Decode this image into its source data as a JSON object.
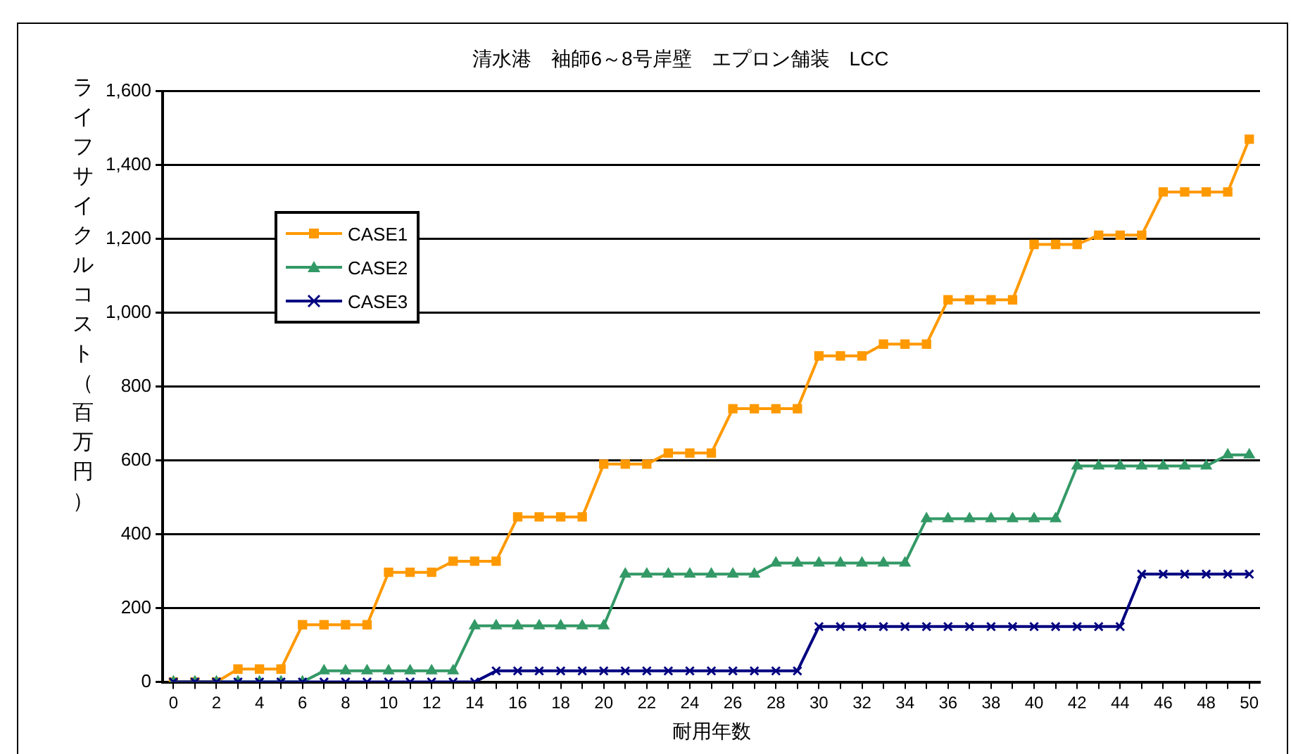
{
  "chart_data": {
    "type": "line",
    "title": "清水港　袖師6～8号岸壁　エプロン舗装　LCC",
    "xlabel": "耐用年数",
    "ylabel": "ライフサイクルコスト（百万円）",
    "x": [
      0,
      1,
      2,
      3,
      4,
      5,
      6,
      7,
      8,
      9,
      10,
      11,
      12,
      13,
      14,
      15,
      16,
      17,
      18,
      19,
      20,
      21,
      22,
      23,
      24,
      25,
      26,
      27,
      28,
      29,
      30,
      31,
      32,
      33,
      34,
      35,
      36,
      37,
      38,
      39,
      40,
      41,
      42,
      43,
      44,
      45,
      46,
      47,
      48,
      49,
      50
    ],
    "series": [
      {
        "name": "CASE1",
        "color": "#ff9900",
        "marker": "square",
        "values": [
          0,
          0,
          0,
          35,
          35,
          35,
          155,
          155,
          155,
          155,
          297,
          297,
          297,
          327,
          327,
          327,
          447,
          447,
          447,
          447,
          590,
          590,
          590,
          620,
          620,
          620,
          740,
          740,
          740,
          740,
          883,
          883,
          883,
          915,
          915,
          915,
          1035,
          1035,
          1035,
          1035,
          1185,
          1185,
          1185,
          1210,
          1210,
          1210,
          1327,
          1327,
          1327,
          1327,
          1470
        ]
      },
      {
        "name": "CASE2",
        "color": "#339966",
        "marker": "triangle",
        "values": [
          0,
          0,
          0,
          0,
          0,
          0,
          0,
          30,
          30,
          30,
          30,
          30,
          30,
          30,
          152,
          152,
          152,
          152,
          152,
          152,
          152,
          292,
          292,
          292,
          292,
          292,
          292,
          292,
          322,
          322,
          322,
          322,
          322,
          322,
          322,
          442,
          442,
          442,
          442,
          442,
          442,
          442,
          585,
          585,
          585,
          585,
          585,
          585,
          585,
          615,
          615
        ]
      },
      {
        "name": "CASE3",
        "color": "#000080",
        "marker": "cross",
        "values": [
          0,
          0,
          0,
          0,
          0,
          0,
          0,
          0,
          0,
          0,
          0,
          0,
          0,
          0,
          0,
          30,
          30,
          30,
          30,
          30,
          30,
          30,
          30,
          30,
          30,
          30,
          30,
          30,
          30,
          30,
          150,
          150,
          150,
          150,
          150,
          150,
          150,
          150,
          150,
          150,
          150,
          150,
          150,
          150,
          150,
          292,
          292,
          292,
          292,
          292,
          292
        ]
      }
    ],
    "xlim": [
      -0.5,
      50.5
    ],
    "xticks": [
      0,
      {
        "value": 1,
        "label": null
      },
      2,
      {
        "value": 3,
        "label": null
      },
      4,
      {
        "value": 5,
        "label": null
      },
      6,
      {
        "value": 7,
        "label": null
      },
      8,
      {
        "value": 9,
        "label": null
      },
      10,
      {
        "value": 11,
        "label": null
      },
      12,
      {
        "value": 13,
        "label": null
      },
      14,
      {
        "value": 15,
        "label": null
      },
      16,
      {
        "value": 17,
        "label": null
      },
      18,
      {
        "value": 19,
        "label": null
      },
      20,
      {
        "value": 21,
        "label": null
      },
      22,
      {
        "value": 23,
        "label": null
      },
      24,
      {
        "value": 25,
        "label": null
      },
      26,
      {
        "value": 27,
        "label": null
      },
      28,
      {
        "value": 29,
        "label": null
      },
      30,
      {
        "value": 31,
        "label": null
      },
      32,
      {
        "value": 33,
        "label": null
      },
      34,
      {
        "value": 35,
        "label": null
      },
      36,
      {
        "value": 37,
        "label": null
      },
      38,
      {
        "value": 39,
        "label": null
      },
      40,
      {
        "value": 41,
        "label": null
      },
      42,
      {
        "value": 43,
        "label": null
      },
      44,
      {
        "value": 45,
        "label": null
      },
      46,
      {
        "value": 47,
        "label": null
      },
      48,
      {
        "value": 49,
        "label": null
      },
      50
    ],
    "ylim": [
      0,
      1600
    ],
    "yticks": [
      {
        "value": 0,
        "label": "0"
      },
      {
        "value": 200,
        "label": "200"
      },
      {
        "value": 400,
        "label": "400"
      },
      {
        "value": 600,
        "label": "600"
      },
      {
        "value": 800,
        "label": "800"
      },
      {
        "value": 1000,
        "label": "1,000"
      },
      {
        "value": 1200,
        "label": "1,200"
      },
      {
        "value": 1400,
        "label": "1,400"
      },
      {
        "value": 1600,
        "label": "1,600"
      }
    ],
    "grid": "y",
    "legend": "top left",
    "line_style": "solid"
  }
}
